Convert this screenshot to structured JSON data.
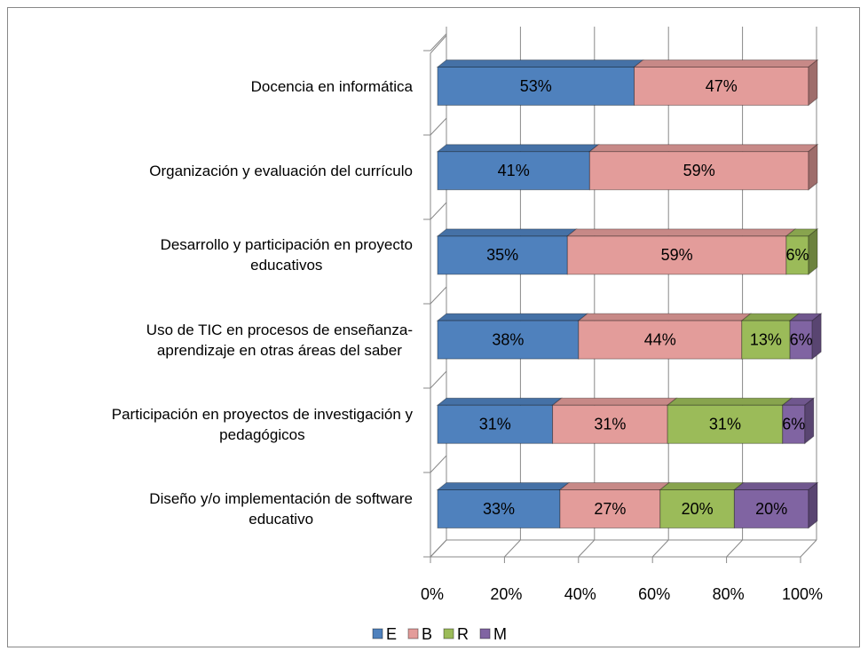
{
  "chart_data": {
    "type": "bar",
    "orientation": "horizontal",
    "stacked": true,
    "three_d": true,
    "categories": [
      "Docencia en informática",
      "Organización y evaluación del currículo",
      "Desarrollo y participación en proyecto\neducativos",
      "Uso de TIC en procesos de enseñanza-\naprendizaje en otras áreas del saber",
      "Participación en proyectos de investigación y\npedagógicos",
      "Diseño y/o implementación de software\neducativo"
    ],
    "series": [
      {
        "name": "E",
        "color": "#4f81bd",
        "values": [
          53,
          41,
          35,
          38,
          31,
          33
        ],
        "value_labels": [
          "53%",
          "41%",
          "35%",
          "38%",
          "31%",
          "33%"
        ]
      },
      {
        "name": "B",
        "color": "#e39c9a",
        "values": [
          47,
          59,
          59,
          44,
          31,
          27
        ],
        "value_labels": [
          "47%",
          "59%",
          "59%",
          "44%",
          "31%",
          "27%"
        ]
      },
      {
        "name": "R",
        "color": "#9bbb59",
        "values": [
          null,
          null,
          6,
          13,
          31,
          20
        ],
        "value_labels": [
          null,
          null,
          "6%",
          "13%",
          "31%",
          "20%"
        ]
      },
      {
        "name": "M",
        "color": "#8064a2",
        "values": [
          null,
          null,
          null,
          6,
          6,
          20
        ],
        "value_labels": [
          null,
          null,
          null,
          "6%",
          "6%",
          "20%"
        ]
      }
    ],
    "xlim": [
      0,
      100
    ],
    "xticks": [
      {
        "value": 0,
        "label": "0%"
      },
      {
        "value": 20,
        "label": "20%"
      },
      {
        "value": 40,
        "label": "40%"
      },
      {
        "value": 60,
        "label": "60%"
      },
      {
        "value": 80,
        "label": "80%"
      },
      {
        "value": 100,
        "label": "100%"
      }
    ],
    "grid": true,
    "legend": "bottom"
  }
}
